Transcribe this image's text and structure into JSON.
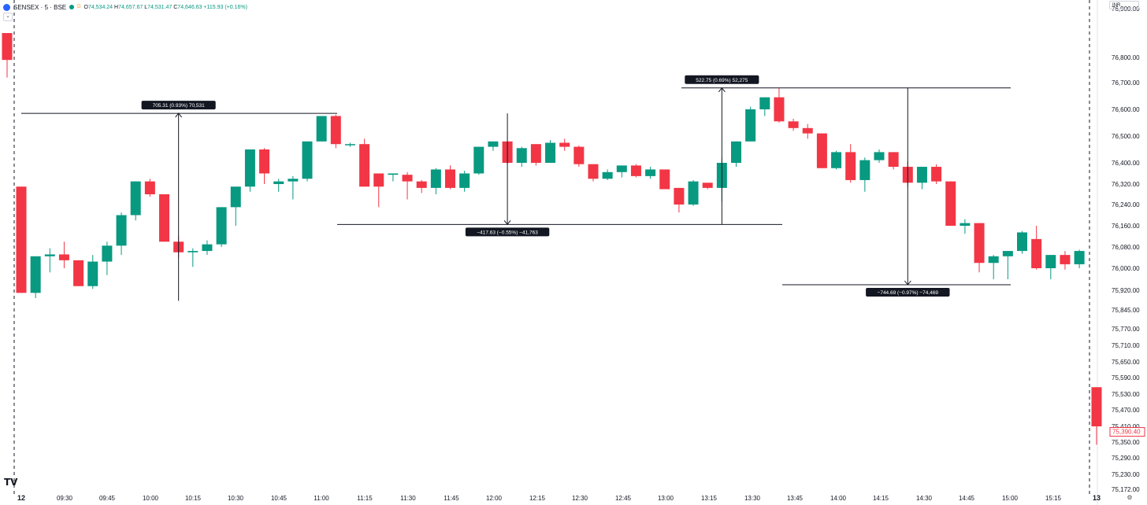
{
  "header": {
    "symbol": "SENSEX · 5 · BSE",
    "badge": "D",
    "open_label": "O",
    "open": "74,534.24",
    "high_label": "H",
    "high": "74,657.67",
    "low_label": "L",
    "low": "74,531.47",
    "close_label": "C",
    "close": "74,646.63",
    "change": "+115.93 (+0.16%)"
  },
  "currency": "INR",
  "collapse_icon": "chevron-down-icon",
  "settings_icon": "gear-icon",
  "logo_icon": "tradingview-logo-icon",
  "colors": {
    "up": "#089981",
    "down": "#f23645",
    "line": "#131722",
    "label_bg": "#131722"
  },
  "chart_data": {
    "type": "candlestick",
    "y_axis": {
      "ticks": [
        "76,900.00",
        "76,800.00",
        "76,700.00",
        "76,600.00",
        "76,500.00",
        "76,400.00",
        "76,320.00",
        "76,240.00",
        "76,160.00",
        "76,080.00",
        "76,000.00",
        "75,920.00",
        "75,845.00",
        "75,770.00",
        "75,710.00",
        "75,650.00",
        "75,590.00",
        "75,530.00",
        "75,470.00",
        "75,410.00",
        "75,350.00",
        "75,290.00",
        "75,230.00",
        "75,172.00"
      ],
      "last_price": "75,390.40"
    },
    "x_axis": {
      "labels": [
        "12",
        "09:30",
        "09:45",
        "10:00",
        "10:15",
        "10:30",
        "10:45",
        "11:00",
        "11:15",
        "11:30",
        "11:45",
        "12:00",
        "12:15",
        "12:30",
        "12:45",
        "13:00",
        "13:15",
        "13:30",
        "13:45",
        "14:00",
        "14:15",
        "14:30",
        "14:45",
        "15:00",
        "15:15",
        "13"
      ]
    },
    "candles": [
      {
        "o": 76310,
        "h": 76310,
        "l": 75910,
        "c": 75910
      },
      {
        "o": 75910,
        "h": 76045,
        "l": 75890,
        "c": 76045
      },
      {
        "o": 76045,
        "h": 76075,
        "l": 75985,
        "c": 76052
      },
      {
        "o": 76052,
        "h": 76100,
        "l": 76000,
        "c": 76030
      },
      {
        "o": 76030,
        "h": 76030,
        "l": 75935,
        "c": 75935
      },
      {
        "o": 75935,
        "h": 76050,
        "l": 75925,
        "c": 76025
      },
      {
        "o": 76025,
        "h": 76100,
        "l": 75975,
        "c": 76085
      },
      {
        "o": 76085,
        "h": 76210,
        "l": 76050,
        "c": 76200
      },
      {
        "o": 76200,
        "h": 76330,
        "l": 76180,
        "c": 76330
      },
      {
        "o": 76330,
        "h": 76340,
        "l": 76270,
        "c": 76280
      },
      {
        "o": 76280,
        "h": 76280,
        "l": 76100,
        "c": 76100
      },
      {
        "o": 76100,
        "h": 76120,
        "l": 76040,
        "c": 76060
      },
      {
        "o": 76060,
        "h": 76075,
        "l": 76005,
        "c": 76065
      },
      {
        "o": 76065,
        "h": 76105,
        "l": 76050,
        "c": 76090
      },
      {
        "o": 76090,
        "h": 76230,
        "l": 76080,
        "c": 76230
      },
      {
        "o": 76230,
        "h": 76305,
        "l": 76160,
        "c": 76310
      },
      {
        "o": 76310,
        "h": 76450,
        "l": 76290,
        "c": 76450
      },
      {
        "o": 76450,
        "h": 76455,
        "l": 76320,
        "c": 76360
      },
      {
        "o": 76320,
        "h": 76340,
        "l": 76290,
        "c": 76330
      },
      {
        "o": 76330,
        "h": 76350,
        "l": 76260,
        "c": 76340
      },
      {
        "o": 76340,
        "h": 76480,
        "l": 76330,
        "c": 76480
      },
      {
        "o": 76480,
        "h": 76575,
        "l": 76480,
        "c": 76575
      },
      {
        "o": 76575,
        "h": 76580,
        "l": 76455,
        "c": 76470
      },
      {
        "o": 76470,
        "h": 76475,
        "l": 76460,
        "c": 76470
      },
      {
        "o": 76470,
        "h": 76490,
        "l": 76310,
        "c": 76310
      },
      {
        "o": 76360,
        "h": 76360,
        "l": 76230,
        "c": 76310
      },
      {
        "o": 76355,
        "h": 76360,
        "l": 76330,
        "c": 76360
      },
      {
        "o": 76355,
        "h": 76365,
        "l": 76260,
        "c": 76330
      },
      {
        "o": 76330,
        "h": 76335,
        "l": 76285,
        "c": 76305
      },
      {
        "o": 76305,
        "h": 76380,
        "l": 76280,
        "c": 76375
      },
      {
        "o": 76375,
        "h": 76390,
        "l": 76300,
        "c": 76305
      },
      {
        "o": 76305,
        "h": 76370,
        "l": 76290,
        "c": 76360
      },
      {
        "o": 76360,
        "h": 76460,
        "l": 76355,
        "c": 76460
      },
      {
        "o": 76460,
        "h": 76480,
        "l": 76445,
        "c": 76480
      },
      {
        "o": 76480,
        "h": 76480,
        "l": 76395,
        "c": 76400
      },
      {
        "o": 76400,
        "h": 76460,
        "l": 76385,
        "c": 76455
      },
      {
        "o": 76470,
        "h": 76470,
        "l": 76390,
        "c": 76400
      },
      {
        "o": 76400,
        "h": 76485,
        "l": 76400,
        "c": 76475
      },
      {
        "o": 76475,
        "h": 76490,
        "l": 76445,
        "c": 76460
      },
      {
        "o": 76460,
        "h": 76465,
        "l": 76385,
        "c": 76395
      },
      {
        "o": 76395,
        "h": 76395,
        "l": 76330,
        "c": 76340
      },
      {
        "o": 76340,
        "h": 76375,
        "l": 76335,
        "c": 76365
      },
      {
        "o": 76365,
        "h": 76390,
        "l": 76345,
        "c": 76390
      },
      {
        "o": 76390,
        "h": 76395,
        "l": 76345,
        "c": 76350
      },
      {
        "o": 76350,
        "h": 76385,
        "l": 76340,
        "c": 76375
      },
      {
        "o": 76375,
        "h": 76375,
        "l": 76300,
        "c": 76300
      },
      {
        "o": 76305,
        "h": 76305,
        "l": 76210,
        "c": 76240
      },
      {
        "o": 76240,
        "h": 76335,
        "l": 76235,
        "c": 76330
      },
      {
        "o": 76325,
        "h": 76325,
        "l": 76300,
        "c": 76305
      },
      {
        "o": 76305,
        "h": 76420,
        "l": 76250,
        "c": 76400
      },
      {
        "o": 76400,
        "h": 76480,
        "l": 76385,
        "c": 76480
      },
      {
        "o": 76480,
        "h": 76610,
        "l": 76480,
        "c": 76600
      },
      {
        "o": 76600,
        "h": 76645,
        "l": 76575,
        "c": 76645
      },
      {
        "o": 76645,
        "h": 76680,
        "l": 76550,
        "c": 76555
      },
      {
        "o": 76555,
        "h": 76565,
        "l": 76520,
        "c": 76530
      },
      {
        "o": 76530,
        "h": 76545,
        "l": 76490,
        "c": 76510
      },
      {
        "o": 76510,
        "h": 76510,
        "l": 76380,
        "c": 76380
      },
      {
        "o": 76380,
        "h": 76445,
        "l": 76375,
        "c": 76440
      },
      {
        "o": 76440,
        "h": 76470,
        "l": 76325,
        "c": 76335
      },
      {
        "o": 76335,
        "h": 76420,
        "l": 76290,
        "c": 76410
      },
      {
        "o": 76410,
        "h": 76450,
        "l": 76400,
        "c": 76440
      },
      {
        "o": 76440,
        "h": 76440,
        "l": 76375,
        "c": 76385
      },
      {
        "o": 76385,
        "h": 76405,
        "l": 76310,
        "c": 76325
      },
      {
        "o": 76325,
        "h": 76385,
        "l": 76300,
        "c": 76385
      },
      {
        "o": 76385,
        "h": 76395,
        "l": 76320,
        "c": 76330
      },
      {
        "o": 76330,
        "h": 76330,
        "l": 76160,
        "c": 76160
      },
      {
        "o": 76160,
        "h": 76185,
        "l": 76130,
        "c": 76170
      },
      {
        "o": 76170,
        "h": 76170,
        "l": 75985,
        "c": 76020
      },
      {
        "o": 76020,
        "h": 76050,
        "l": 75960,
        "c": 76045
      },
      {
        "o": 76045,
        "h": 76065,
        "l": 75960,
        "c": 76065
      },
      {
        "o": 76065,
        "h": 76140,
        "l": 76055,
        "c": 76135
      },
      {
        "o": 76110,
        "h": 76160,
        "l": 75995,
        "c": 76000
      },
      {
        "o": 76000,
        "h": 76050,
        "l": 75960,
        "c": 76050
      },
      {
        "o": 76050,
        "h": 76065,
        "l": 75995,
        "c": 76015
      },
      {
        "o": 76015,
        "h": 76070,
        "l": 76000,
        "c": 76065
      }
    ],
    "outside_candles": [
      {
        "side": "left",
        "o": 76850,
        "h": 76850,
        "l": 76720,
        "c": 76790
      },
      {
        "side": "right",
        "o": 75555,
        "h": 75555,
        "l": 75340,
        "c": 75410
      }
    ],
    "measurements": [
      {
        "label": "705.31 (0.93%) 70,531",
        "from_index": 11,
        "from": 75880,
        "to": 76585,
        "direction": "up"
      },
      {
        "label": "−417.63 (−0.55%) −41,763",
        "from_index": 34,
        "from": 76585,
        "to": 76165,
        "direction": "down"
      },
      {
        "label": "522.75 (0.69%) 52,275",
        "from_index": 49,
        "from": 76165,
        "to": 76680,
        "direction": "up"
      },
      {
        "label": "−744.69 (−0.97%) −74,469",
        "from_index": 62,
        "from": 76680,
        "to": 75940,
        "direction": "down"
      }
    ]
  }
}
